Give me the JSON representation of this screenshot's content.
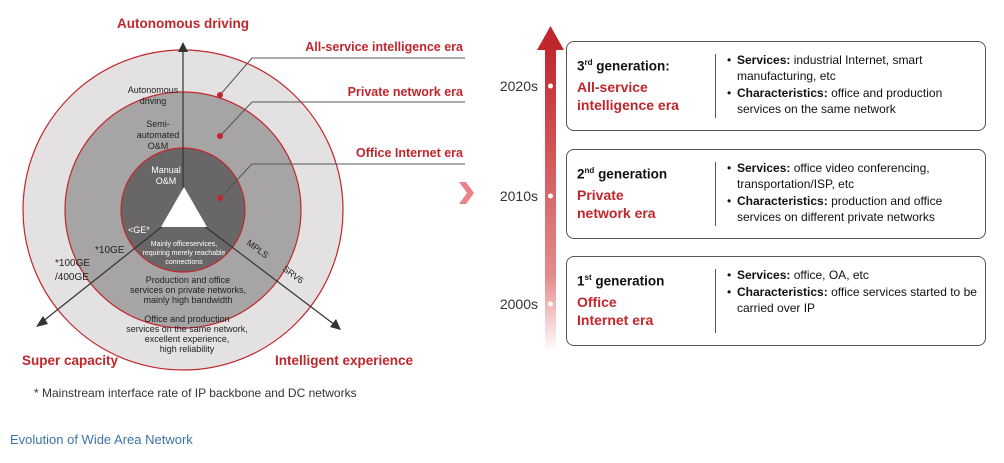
{
  "left_diagram": {
    "axes": {
      "top": "Autonomous driving",
      "bottom_left": "Super capacity",
      "bottom_right": "Intelligent experience"
    },
    "eras": [
      "All-service intelligence era",
      "Private network era",
      "Office Internet era"
    ],
    "rings": {
      "outer_line1": "Autonomous",
      "outer_line2": "driving",
      "middle_line1": "Semi-",
      "middle_line2": "automated",
      "middle_line3": "O&M",
      "inner_line1": "Manual",
      "inner_line2": "O&M"
    },
    "inner_desc": [
      "Mainly officeservices,",
      "requiring merely reachable",
      "connections"
    ],
    "middle_desc": [
      "Production and office",
      "services on private networks,",
      "mainly high bandwidth"
    ],
    "outer_desc": [
      "Office and production",
      "services on the same network,",
      "excellent experience,",
      "high reliability"
    ],
    "rates": {
      "ge": "<GE*",
      "tenge": "*10GE",
      "hundred_line1": "*100GE",
      "hundred_line2": "/400GE"
    },
    "protocols": {
      "mpls": "MPLS",
      "srv6": "SRV6"
    },
    "footnote": "* Mainstream interface rate of IP backbone and DC networks",
    "colors": {
      "outer": "#e3e1e1",
      "middle": "#a6a4a4",
      "inner": "#686666",
      "accent": "#c0272d"
    }
  },
  "caption": "Evolution of Wide Area Network",
  "timeline": {
    "decades": [
      "2020s",
      "2010s",
      "2000s"
    ],
    "generations": [
      {
        "ordinal": "3",
        "suffix": "rd",
        "word": "generation:",
        "era_line1": "All-service",
        "era_line2": "intelligence era",
        "services_label": "Services:",
        "services": "industrial Internet, smart manufacturing, etc",
        "char_label": "Characteristics:",
        "characteristics": "office and production services on the same network"
      },
      {
        "ordinal": "2",
        "suffix": "nd",
        "word": "generation",
        "era_line1": "Private",
        "era_line2": "network era",
        "services_label": "Services:",
        "services": "office video conferencing, transportation/ISP, etc",
        "char_label": "Characteristics:",
        "characteristics": "production and office services on different private networks"
      },
      {
        "ordinal": "1",
        "suffix": "st",
        "word": "generation",
        "era_line1": "Office",
        "era_line2": "Internet era",
        "services_label": "Services:",
        "services": "office, OA, etc",
        "char_label": "Characteristics:",
        "characteristics": "office services started to be carried over IP"
      }
    ]
  }
}
